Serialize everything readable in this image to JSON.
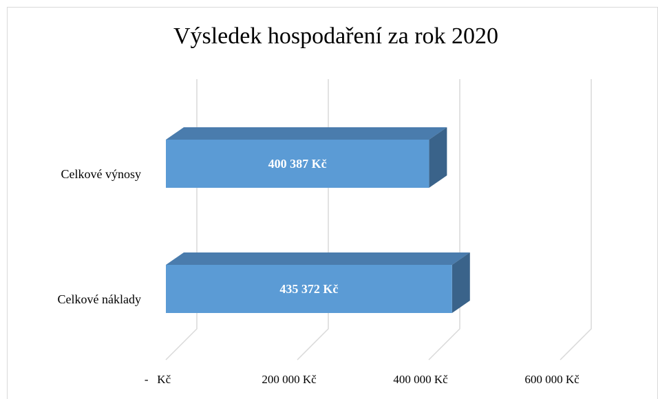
{
  "chart_data": {
    "type": "bar3d_horizontal",
    "title": "Výsledek hospodaření za rok 2020",
    "categories": [
      "Celkové výnosy",
      "Celkové náklady"
    ],
    "values": [
      400387,
      435372
    ],
    "value_labels": [
      "400 387 Kč",
      "435 372 Kč"
    ],
    "color": "#5b9bd5",
    "xlim": [
      0,
      600000
    ],
    "xticks": [
      {
        "value": 0,
        "label": "-   Kč"
      },
      {
        "value": 200000,
        "label": "200 000 Kč"
      },
      {
        "value": 400000,
        "label": "400 000 Kč"
      },
      {
        "value": 600000,
        "label": "600 000 Kč"
      }
    ],
    "grid": true
  }
}
